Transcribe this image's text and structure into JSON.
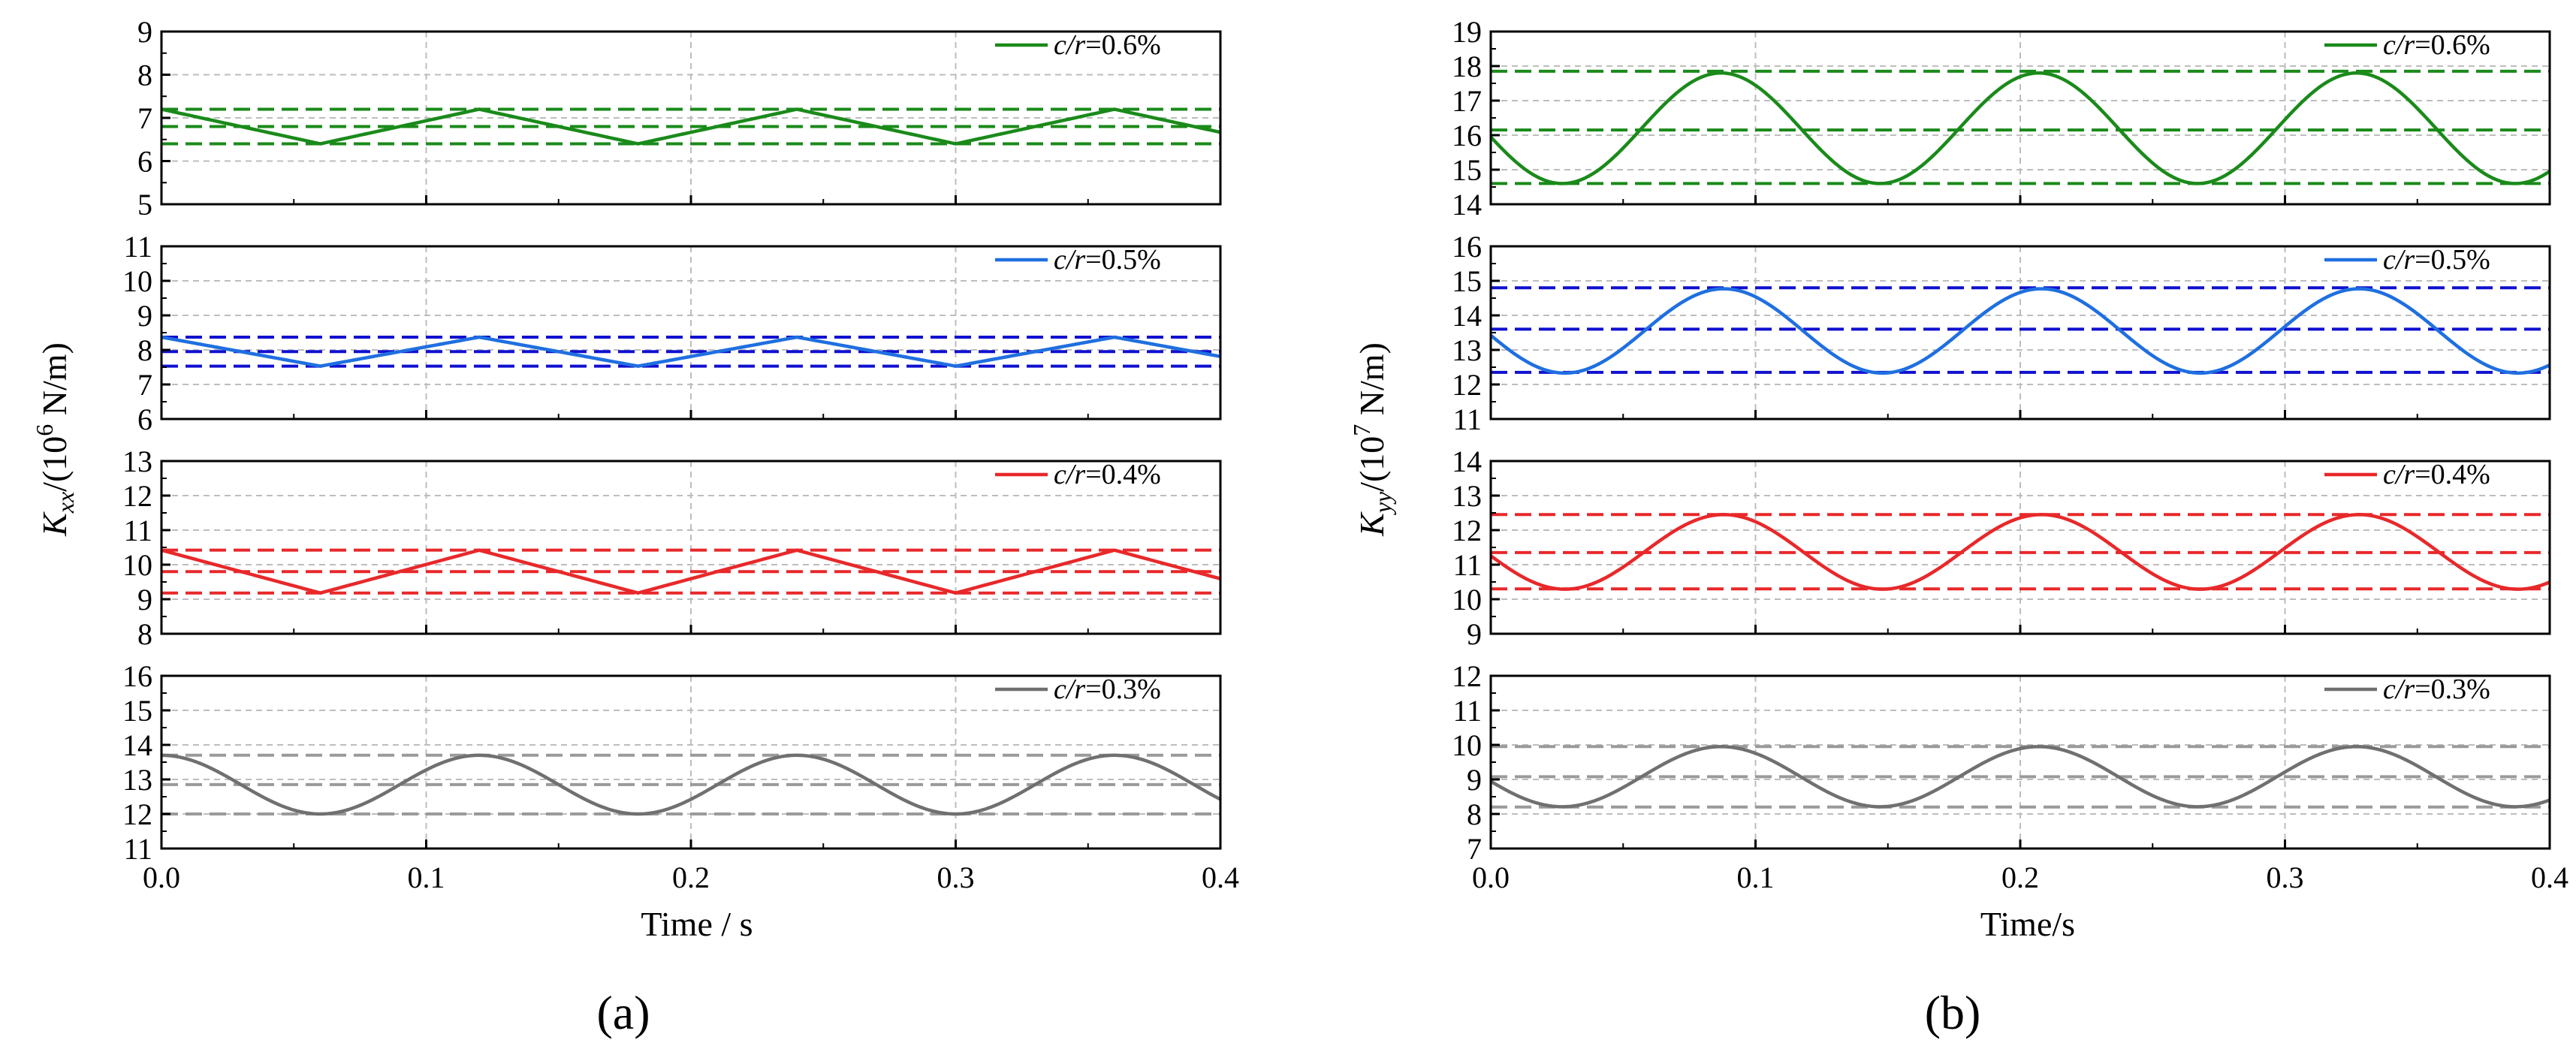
{
  "figure": {
    "panel_a_label": "(a)",
    "panel_b_label": "(b)"
  },
  "colors": {
    "green": "#1a8a1a",
    "blue": "#1f6fe0",
    "blue_dash": "#1010d0",
    "red": "#e8282a",
    "gray": "#707070",
    "gray_dash": "#9a9a9a",
    "grid": "#bdbdbd",
    "axis": "#000000"
  },
  "chart_data": [
    {
      "type": "line",
      "panel": "(a)",
      "xlabel": "Time / s",
      "ylabel_main": "K",
      "ylabel_sub": "xx",
      "ylabel_unit_prefix": "/(10",
      "ylabel_exp": "6",
      "ylabel_unit_suffix": " N/m)",
      "xlim": [
        0,
        0.4
      ],
      "x_ticks": [
        0.0,
        0.1,
        0.2,
        0.3,
        0.4
      ],
      "x_tick_labels": [
        "0.0",
        "0.1",
        "0.2",
        "0.3",
        "0.4"
      ],
      "subplots": [
        {
          "legend": "=0.6%",
          "legend_prefix": "c/r",
          "color": "green",
          "ylim": [
            5,
            9
          ],
          "y_ticks": [
            5,
            6,
            7,
            8,
            9
          ],
          "mean": 6.8,
          "amplitude": 0.4,
          "period": 0.12,
          "phase_t_max": 0.0,
          "dash_levels": [
            7.2,
            6.8,
            6.4
          ],
          "dash_color": "green",
          "shape": "tri"
        },
        {
          "legend": "=0.5%",
          "legend_prefix": "c/r",
          "color": "blue",
          "ylim": [
            6,
            11
          ],
          "y_ticks": [
            6,
            7,
            8,
            9,
            10,
            11
          ],
          "mean": 7.95,
          "amplitude": 0.42,
          "period": 0.12,
          "phase_t_max": 0.0,
          "dash_levels": [
            8.37,
            7.95,
            7.53
          ],
          "dash_color": "blue_dash",
          "shape": "tri"
        },
        {
          "legend": "=0.4%",
          "legend_prefix": "c/r",
          "color": "red",
          "ylim": [
            8,
            13
          ],
          "y_ticks": [
            8,
            9,
            10,
            11,
            12,
            13
          ],
          "mean": 9.8,
          "amplitude": 0.62,
          "period": 0.12,
          "phase_t_max": 0.0,
          "dash_levels": [
            10.42,
            9.8,
            9.18
          ],
          "dash_color": "red",
          "shape": "tri"
        },
        {
          "legend": "=0.3%",
          "legend_prefix": "c/r",
          "color": "gray",
          "ylim": [
            11,
            16
          ],
          "y_ticks": [
            11,
            12,
            13,
            14,
            15,
            16
          ],
          "mean": 12.85,
          "amplitude": 0.85,
          "period": 0.12,
          "phase_t_max": 0.0,
          "dash_levels": [
            13.7,
            12.85,
            12.0
          ],
          "dash_color": "gray_dash",
          "shape": "sin"
        }
      ]
    },
    {
      "type": "line",
      "panel": "(b)",
      "xlabel": "Time/s",
      "ylabel_main": "K",
      "ylabel_sub": "yy",
      "ylabel_unit_prefix": "/(10",
      "ylabel_exp": "7",
      "ylabel_unit_suffix": " N/m)",
      "xlim": [
        0,
        0.4
      ],
      "x_ticks": [
        0.0,
        0.1,
        0.2,
        0.3,
        0.4
      ],
      "x_tick_labels": [
        "0.0",
        "0.1",
        "0.2",
        "0.3",
        "0.4"
      ],
      "subplots": [
        {
          "legend": "=0.6%",
          "legend_prefix": "c/r",
          "color": "green",
          "ylim": [
            14,
            19
          ],
          "y_ticks": [
            14,
            15,
            16,
            17,
            18,
            19
          ],
          "mean": 16.2,
          "amplitude": 1.6,
          "period": 0.12,
          "phase_t_max": 0.087,
          "dash_levels": [
            17.85,
            16.15,
            14.6
          ],
          "dash_color": "green",
          "shape": "sin"
        },
        {
          "legend": "=0.5%",
          "legend_prefix": "c/r",
          "color": "blue",
          "ylim": [
            11,
            16
          ],
          "y_ticks": [
            11,
            12,
            13,
            14,
            15,
            16
          ],
          "mean": 13.55,
          "amplitude": 1.22,
          "period": 0.12,
          "phase_t_max": 0.088,
          "dash_levels": [
            14.8,
            13.6,
            12.35
          ],
          "dash_color": "blue_dash",
          "shape": "sin"
        },
        {
          "legend": "=0.4%",
          "legend_prefix": "c/r",
          "color": "red",
          "ylim": [
            9,
            14
          ],
          "y_ticks": [
            9,
            10,
            11,
            12,
            13,
            14
          ],
          "mean": 11.37,
          "amplitude": 1.08,
          "period": 0.12,
          "phase_t_max": 0.088,
          "dash_levels": [
            12.45,
            11.35,
            10.3
          ],
          "dash_color": "red",
          "shape": "sin"
        },
        {
          "legend": "=0.3%",
          "legend_prefix": "c/r",
          "color": "gray",
          "ylim": [
            7,
            12
          ],
          "y_ticks": [
            7,
            8,
            9,
            10,
            11,
            12
          ],
          "mean": 9.08,
          "amplitude": 0.87,
          "period": 0.12,
          "phase_t_max": 0.087,
          "dash_levels": [
            9.95,
            9.08,
            8.2
          ],
          "dash_color": "gray_dash",
          "shape": "sin"
        }
      ]
    }
  ]
}
